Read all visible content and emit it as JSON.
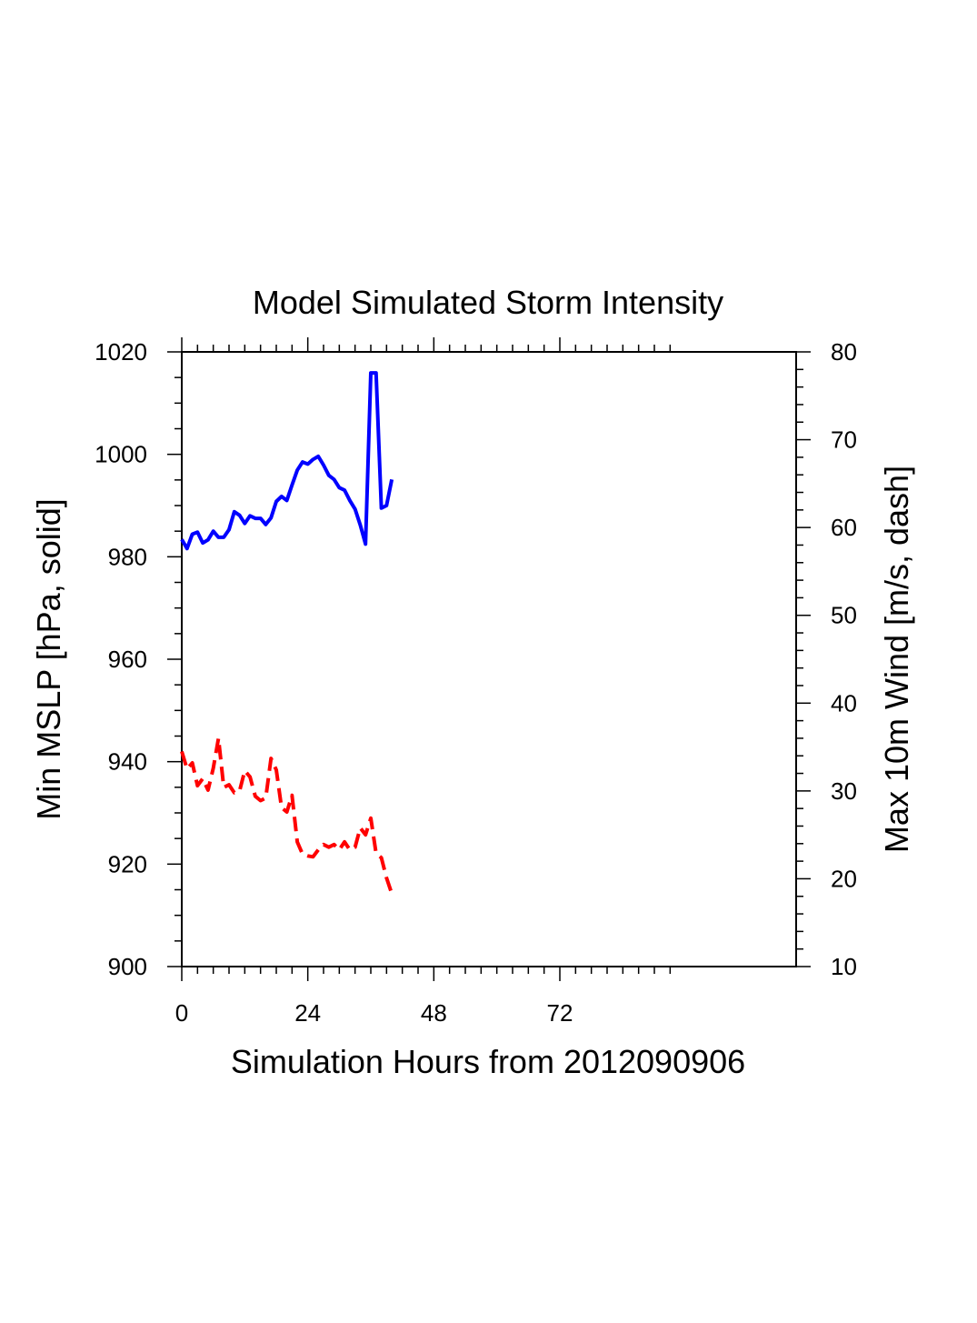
{
  "chart_data": {
    "type": "line",
    "title": "Model Simulated Storm Intensity",
    "xlabel": "Simulation Hours from 2012090906",
    "ylabel_left": "Min MSLP  [hPa, solid]",
    "ylabel_right": "Max 10m Wind  [m/s, dash]",
    "xlim": [
      0,
      117
    ],
    "ylim_left": [
      900,
      1020
    ],
    "ylim_right": [
      10,
      80
    ],
    "x_ticks": [
      0,
      24,
      48,
      72
    ],
    "x_tick_labels": [
      "0",
      "24",
      "48",
      "72"
    ],
    "y_left_ticks": [
      900,
      920,
      940,
      960,
      980,
      1000,
      1020
    ],
    "y_left_tick_labels": [
      "900",
      "920",
      "940",
      "960",
      "980",
      "1000",
      "1020"
    ],
    "y_right_ticks": [
      10,
      20,
      30,
      40,
      50,
      60,
      70,
      80
    ],
    "y_right_tick_labels": [
      "10",
      "20",
      "30",
      "40",
      "50",
      "60",
      "70",
      "80"
    ],
    "grid": false,
    "series": [
      {
        "name": "Min MSLP",
        "axis": "left",
        "style": "solid",
        "color": "#0000ff",
        "x": [
          0,
          1,
          2,
          3,
          4,
          5,
          6,
          7,
          8,
          9,
          10,
          11,
          12,
          13,
          14,
          15,
          16,
          17,
          18,
          19,
          20,
          21,
          22,
          23,
          24,
          25,
          26,
          27,
          28,
          29,
          30,
          31,
          32,
          33,
          34,
          35,
          36,
          37,
          38,
          39,
          40
        ],
        "values": [
          983.4,
          981.6,
          984.4,
          984.8,
          982.7,
          983.3,
          985.0,
          983.8,
          983.8,
          985.3,
          988.8,
          988.1,
          986.5,
          988.0,
          987.5,
          987.5,
          986.3,
          987.6,
          990.8,
          991.8,
          991.0,
          994.0,
          996.9,
          998.5,
          998.1,
          999.0,
          999.6,
          997.9,
          995.9,
          995.1,
          993.5,
          993.0,
          991.0,
          989.3,
          986.2,
          982.5,
          1015.9,
          1015.9,
          989.5,
          990.0,
          995.1
        ]
      },
      {
        "name": "Max 10m Wind",
        "axis": "right",
        "style": "dash",
        "color": "#ff0000",
        "x": [
          0,
          1,
          2,
          3,
          4,
          5,
          6,
          7,
          8,
          9,
          10,
          11,
          12,
          13,
          14,
          15,
          16,
          17,
          18,
          19,
          20,
          21,
          22,
          23,
          24,
          25,
          26,
          27,
          28,
          29,
          30,
          31,
          32,
          33,
          34,
          35,
          36,
          37,
          38,
          39,
          40
        ],
        "values": [
          34.5,
          32.5,
          33.2,
          30.6,
          31.4,
          30.1,
          32.6,
          36.0,
          30.4,
          30.7,
          29.8,
          30.0,
          32.3,
          31.6,
          29.4,
          28.9,
          29.2,
          33.7,
          32.4,
          28.1,
          27.6,
          29.5,
          24.2,
          22.8,
          22.6,
          22.5,
          23.3,
          23.9,
          23.6,
          23.9,
          23.3,
          24.2,
          23.3,
          23.6,
          25.8,
          25.0,
          26.9,
          22.9,
          22.4,
          20.1,
          18.3
        ]
      }
    ]
  }
}
